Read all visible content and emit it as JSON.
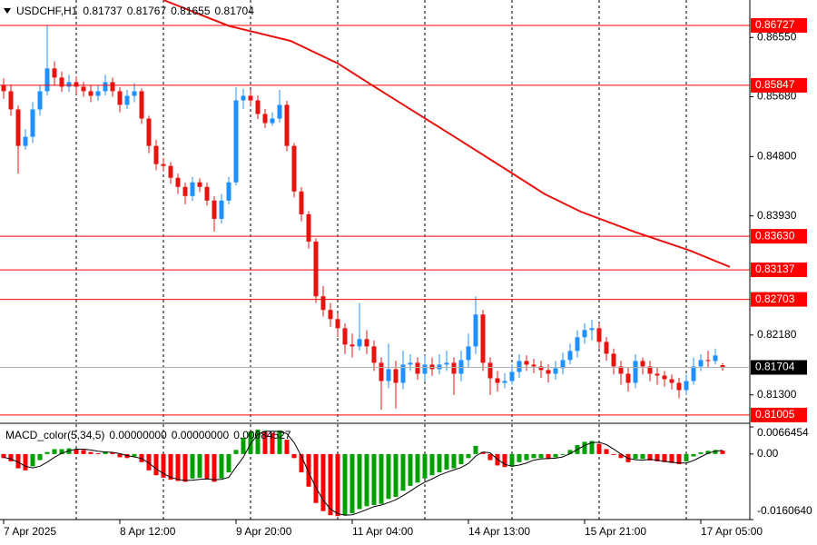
{
  "chart_data": [
    {
      "type": "candlestick",
      "title": "USDCHF,H1",
      "title_values": [
        0.81737,
        0.81767,
        0.81655,
        0.81704
      ],
      "x": [
        0,
        2,
        4,
        6,
        8,
        10,
        12,
        14,
        16,
        18,
        20,
        22,
        24,
        26,
        28,
        30,
        32,
        34,
        36,
        38,
        40,
        42,
        44,
        46,
        48,
        50,
        52,
        54,
        56,
        58,
        60,
        62,
        64,
        66,
        68,
        70,
        72,
        74,
        76,
        78,
        80,
        82,
        84,
        86,
        88,
        90,
        92,
        94,
        96,
        98,
        100,
        102,
        104,
        106,
        108,
        110,
        112,
        114,
        116,
        118,
        120,
        122,
        124,
        126,
        128,
        130,
        132,
        134,
        136,
        138,
        140,
        142,
        144,
        146,
        148,
        150,
        152,
        154,
        156,
        158,
        160,
        162,
        164,
        166,
        168,
        170,
        172,
        174,
        176,
        178,
        180,
        182,
        184,
        186,
        188,
        190,
        192,
        194,
        196,
        198
      ],
      "open": [
        0.8585,
        0.8576,
        0.85493,
        0.84957,
        0.85091,
        0.85493,
        0.8576,
        0.86095,
        0.85961,
        0.85827,
        0.85894,
        0.85827,
        0.8576,
        0.85693,
        0.8576,
        0.85894,
        0.8576,
        0.8556,
        0.85693,
        0.8576,
        0.85359,
        0.84957,
        0.8469,
        0.84663,
        0.84489,
        0.84355,
        0.84221,
        0.84422,
        0.84355,
        0.84154,
        0.83886,
        0.84154,
        0.84422,
        0.85626,
        0.85693,
        0.85626,
        0.85426,
        0.85292,
        0.85359,
        0.8556,
        0.84957,
        0.84288,
        0.83953,
        0.83552,
        0.82749,
        0.82548,
        0.82414,
        0.8228,
        0.82039,
        0.82012,
        0.8212,
        0.82012,
        0.81772,
        0.81504,
        0.81678,
        0.81477,
        0.81745,
        0.81772,
        0.81611,
        0.81745,
        0.81678,
        0.81745,
        0.81772,
        0.81611,
        0.81812,
        0.82012,
        0.82481,
        0.81772,
        0.81544,
        0.81477,
        0.81504,
        0.81638,
        0.81798,
        0.81745,
        0.81718,
        0.81665,
        0.81611,
        0.81691,
        0.81812,
        0.81946,
        0.82146,
        0.82253,
        0.8228,
        0.82079,
        0.81905,
        0.81718,
        0.81611,
        0.81477,
        0.81798,
        0.81718,
        0.81611,
        0.81584,
        0.81531,
        0.81477,
        0.8137,
        0.81504,
        0.81718,
        0.81812,
        0.81798,
        0.81737
      ],
      "high": [
        0.8595,
        0.8586,
        0.8555,
        0.852,
        0.856,
        0.8585,
        0.86727,
        0.862,
        0.8605,
        0.86,
        0.8598,
        0.859,
        0.8585,
        0.8585,
        0.86,
        0.8596,
        0.8582,
        0.8578,
        0.8588,
        0.858,
        0.854,
        0.8505,
        0.8478,
        0.8472,
        0.8455,
        0.8442,
        0.845,
        0.8448,
        0.8442,
        0.8422,
        0.8425,
        0.845,
        0.8582,
        0.858,
        0.8578,
        0.857,
        0.855,
        0.8545,
        0.8578,
        0.8562,
        0.85,
        0.8435,
        0.84,
        0.836,
        0.829,
        0.8265,
        0.825,
        0.8235,
        0.822,
        0.8265,
        0.8225,
        0.821,
        0.8185,
        0.8205,
        0.818,
        0.8195,
        0.819,
        0.8185,
        0.8188,
        0.8185,
        0.819,
        0.8195,
        0.8185,
        0.8195,
        0.822,
        0.8275,
        0.8255,
        0.8185,
        0.8165,
        0.8162,
        0.8175,
        0.819,
        0.8188,
        0.8183,
        0.818,
        0.8175,
        0.818,
        0.8192,
        0.8205,
        0.8225,
        0.8235,
        0.824,
        0.8235,
        0.8215,
        0.8198,
        0.818,
        0.817,
        0.819,
        0.8185,
        0.818,
        0.817,
        0.8165,
        0.816,
        0.8155,
        0.816,
        0.8185,
        0.819,
        0.8195,
        0.8198,
        0.81767
      ],
      "low": [
        0.8565,
        0.854,
        0.8455,
        0.849,
        0.85,
        0.854,
        0.857,
        0.8585,
        0.8575,
        0.8575,
        0.8572,
        0.8568,
        0.856,
        0.8562,
        0.857,
        0.8568,
        0.8545,
        0.855,
        0.856,
        0.8528,
        0.8485,
        0.846,
        0.8458,
        0.844,
        0.8425,
        0.841,
        0.8415,
        0.8428,
        0.8408,
        0.837,
        0.8382,
        0.841,
        0.8438,
        0.855,
        0.8555,
        0.8535,
        0.8522,
        0.8525,
        0.853,
        0.8488,
        0.842,
        0.8385,
        0.8345,
        0.8265,
        0.8245,
        0.823,
        0.8215,
        0.819,
        0.8185,
        0.8195,
        0.819,
        0.8165,
        0.8108,
        0.814,
        0.811,
        0.8138,
        0.8165,
        0.8152,
        0.815,
        0.8158,
        0.816,
        0.8165,
        0.813,
        0.815,
        0.817,
        0.819,
        0.8165,
        0.813,
        0.8135,
        0.814,
        0.8145,
        0.8155,
        0.8165,
        0.8162,
        0.8155,
        0.8148,
        0.8152,
        0.816,
        0.8175,
        0.8185,
        0.8205,
        0.821,
        0.8198,
        0.818,
        0.816,
        0.8145,
        0.8135,
        0.814,
        0.816,
        0.815,
        0.8145,
        0.8142,
        0.8138,
        0.8125,
        0.813,
        0.8145,
        0.8165,
        0.817,
        0.8175,
        0.81655
      ],
      "close": [
        0.8576,
        0.85493,
        0.84957,
        0.85091,
        0.85493,
        0.8576,
        0.86095,
        0.85961,
        0.85827,
        0.85894,
        0.85827,
        0.8576,
        0.85693,
        0.8576,
        0.85894,
        0.8576,
        0.8556,
        0.85693,
        0.8576,
        0.85359,
        0.84957,
        0.8469,
        0.84663,
        0.84489,
        0.84355,
        0.84221,
        0.84422,
        0.84355,
        0.84154,
        0.83886,
        0.84154,
        0.84422,
        0.85626,
        0.85693,
        0.85626,
        0.85426,
        0.85292,
        0.85359,
        0.8556,
        0.84957,
        0.84288,
        0.83953,
        0.83552,
        0.82749,
        0.82548,
        0.82414,
        0.8228,
        0.82039,
        0.82012,
        0.8212,
        0.82012,
        0.81772,
        0.81504,
        0.81678,
        0.81477,
        0.81745,
        0.81772,
        0.81611,
        0.81745,
        0.81678,
        0.81745,
        0.81772,
        0.81611,
        0.81812,
        0.82012,
        0.82481,
        0.81772,
        0.81544,
        0.81477,
        0.81504,
        0.81638,
        0.81798,
        0.81745,
        0.81718,
        0.81665,
        0.81611,
        0.81691,
        0.81812,
        0.81946,
        0.82146,
        0.82253,
        0.8228,
        0.82079,
        0.81905,
        0.81718,
        0.81611,
        0.81477,
        0.81798,
        0.81718,
        0.81611,
        0.81584,
        0.81531,
        0.81477,
        0.8137,
        0.81504,
        0.81718,
        0.81812,
        0.81798,
        0.81879,
        0.81704
      ],
      "up_color": "#1e90ff",
      "down_color": "#e8130f",
      "moving_average": {
        "color": "#e8130f",
        "x": [
          44,
          62,
          79,
          92,
          102,
          114,
          126,
          139,
          149,
          159,
          174,
          189,
          200
        ],
        "values": [
          0.871,
          0.8672,
          0.865,
          0.8617,
          0.8583,
          0.8543,
          0.8503,
          0.8459,
          0.8425,
          0.8399,
          0.8369,
          0.8342,
          0.8318
        ]
      },
      "levels": {
        "color": "#ff0000",
        "values": [
          0.86727,
          0.85847,
          {
            "value": 0.8363,
            "label": "0.83630"
          },
          0.83137,
          0.82703,
          0.81005
        ]
      },
      "last_price": 0.81704,
      "xlim": [
        -1,
        205.5
      ],
      "ylim": [
        0.8091,
        0.871
      ],
      "yticks": [
        {
          "value": 0.8655,
          "label": "0.86550"
        },
        {
          "value": 0.8568,
          "label": "0.85680"
        },
        {
          "value": 0.848,
          "label": "0.84800"
        },
        {
          "value": 0.8393,
          "label": "0.83930"
        },
        {
          "value": 0.8218,
          "label": "0.82180"
        },
        {
          "value": 0.813,
          "label": "0.81300"
        }
      ],
      "xticks": [
        {
          "value": 0,
          "label": "7 Apr 2025"
        },
        {
          "value": 32,
          "label": "8 Apr 12:00"
        },
        {
          "value": 64,
          "label": "9 Apr 20:00"
        },
        {
          "value": 96,
          "label": "11 Apr 04:00"
        },
        {
          "value": 128,
          "label": "14 Apr 13:00"
        },
        {
          "value": 160,
          "label": "15 Apr 21:00"
        },
        {
          "value": 192,
          "label": "17 Apr 05:00"
        }
      ],
      "xgrid": [
        20,
        44,
        68,
        92,
        116,
        140,
        164,
        188
      ]
    },
    {
      "type": "macd",
      "title": "MACD_color(5,34,5)",
      "title_values": [
        {
          "value": 0,
          "label": "0.00000000"
        },
        {
          "value": 0,
          "label": "0.00000000"
        },
        0.00084527
      ],
      "ylim": [
        -0.016064,
        0.0066454
      ],
      "yticks": [
        0.0066454,
        {
          "value": 0,
          "label": "0.00"
        },
        {
          "value": -0.016064,
          "label": "-0.0160640"
        }
      ],
      "series": [
        {
          "up_color": "#00a000",
          "down_color": "#ff0000",
          "values": [
            -0.001,
            -0.0018,
            -0.0035,
            -0.004,
            -0.003,
            -0.0015,
            0.0005,
            0.0012,
            0.0012,
            0.0014,
            0.0012,
            0.001,
            0.0005,
            0.0002,
            0.0006,
            0.0004,
            -0.0008,
            -0.001,
            -0.0006,
            -0.002,
            -0.004,
            -0.0052,
            -0.0058,
            -0.0063,
            -0.0066,
            -0.0068,
            -0.006,
            -0.0058,
            -0.0062,
            -0.0068,
            -0.006,
            -0.0045,
            0.001,
            0.004,
            0.0055,
            0.006,
            0.0055,
            0.0052,
            0.0058,
            0.0035,
            -0.001,
            -0.0045,
            -0.008,
            -0.012,
            -0.014,
            -0.015,
            -0.0152,
            -0.015,
            -0.0145,
            -0.0135,
            -0.0128,
            -0.0125,
            -0.0122,
            -0.011,
            -0.0105,
            -0.009,
            -0.0078,
            -0.007,
            -0.006,
            -0.0052,
            -0.0045,
            -0.0038,
            -0.0035,
            -0.0025,
            -0.001,
            0.002,
            0.0005,
            -0.0015,
            -0.0028,
            -0.0032,
            -0.003,
            -0.002,
            -0.0015,
            -0.001,
            -0.001,
            -0.0012,
            -0.0008,
            0,
            0.001,
            0.0022,
            0.003,
            0.0032,
            0.0025,
            0.0012,
            -0.0002,
            -0.001,
            -0.002,
            -0.0012,
            -0.0012,
            -0.0016,
            -0.0018,
            -0.002,
            -0.0022,
            -0.0025,
            -0.0018,
            -0.0006,
            0.0004,
            0.0008,
            0.001,
            0.00084527
          ]
        },
        {
          "color": "#000000",
          "values": [
            -0.0008,
            -0.0012,
            -0.002,
            -0.003,
            -0.0034,
            -0.003,
            -0.002,
            -0.0008,
            0.0002,
            0.0008,
            0.0012,
            0.0012,
            0.001,
            0.0007,
            0.0005,
            0.0004,
            0.0001,
            -0.0004,
            -0.0007,
            -0.0011,
            -0.0022,
            -0.0036,
            -0.0048,
            -0.0057,
            -0.0062,
            -0.0065,
            -0.0064,
            -0.0062,
            -0.0061,
            -0.0063,
            -0.0062,
            -0.0057,
            -0.0032,
            -0.0008,
            0.0025,
            0.0048,
            0.0056,
            0.0056,
            0.0055,
            0.005,
            0.0028,
            -0.0005,
            -0.0045,
            -0.0082,
            -0.0113,
            -0.0135,
            -0.0146,
            -0.015,
            -0.0149,
            -0.0143,
            -0.0136,
            -0.0129,
            -0.0125,
            -0.0119,
            -0.0112,
            -0.0102,
            -0.0091,
            -0.0079,
            -0.0069,
            -0.0061,
            -0.0052,
            -0.0045,
            -0.0039,
            -0.0033,
            -0.0023,
            -0.0005,
            0.0005,
            0.0003,
            -0.0013,
            -0.0025,
            -0.003,
            -0.0027,
            -0.0022,
            -0.0015,
            -0.0012,
            -0.0011,
            -0.001,
            -0.0007,
            0.0001,
            0.0011,
            0.0021,
            0.0028,
            0.0029,
            0.0023,
            0.0012,
            0,
            -0.0011,
            -0.0014,
            -0.0015,
            -0.0013,
            -0.0015,
            -0.0018,
            -0.002,
            -0.0022,
            -0.0022,
            -0.0016,
            -0.0007,
            0.0002,
            0.0007,
            0.0009
          ]
        }
      ]
    }
  ]
}
